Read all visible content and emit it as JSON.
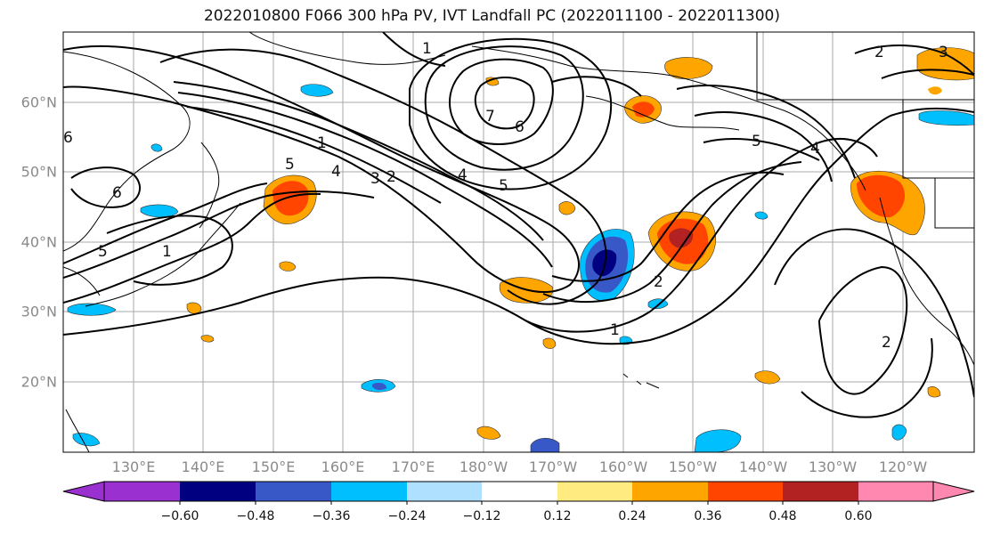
{
  "title": "2022010800 F066 300 hPa PV, IVT Landfall PC (2022011100 - 2022011300)",
  "lat_ticks": [
    "60°N",
    "50°N",
    "40°N",
    "30°N",
    "20°N"
  ],
  "lon_ticks": [
    "130°E",
    "140°E",
    "150°E",
    "160°E",
    "170°E",
    "180°W",
    "170°W",
    "160°W",
    "150°W",
    "140°W",
    "130°W",
    "120°W"
  ],
  "colorbar": {
    "labels": [
      "−0.60",
      "−0.48",
      "−0.36",
      "−0.24",
      "−0.12",
      "0.12",
      "0.24",
      "0.36",
      "0.48",
      "0.60"
    ],
    "colors": [
      "#9b30d0",
      "#000080",
      "#3858c8",
      "#00bfff",
      "#b0e0ff",
      "#ffffff",
      "#ffeb80",
      "#ffa500",
      "#ff4500",
      "#b22222",
      "#ff88b0"
    ]
  },
  "pv_contour_labels": [
    "1",
    "1",
    "1",
    "1",
    "2",
    "2",
    "2",
    "2",
    "3",
    "3",
    "4",
    "4",
    "4",
    "5",
    "5",
    "5",
    "5",
    "6",
    "6",
    "6",
    "7"
  ],
  "palette": {
    "land_line": "#000000",
    "grid": "#a8a8a8",
    "pos_light": "#ffeb80",
    "pos_mid": "#ffa500",
    "pos_strong": "#ff4500",
    "neg_light": "#b0e0ff",
    "neg_mid": "#00bfff",
    "neg_strong": "#3858c8",
    "neg_max": "#000080"
  }
}
